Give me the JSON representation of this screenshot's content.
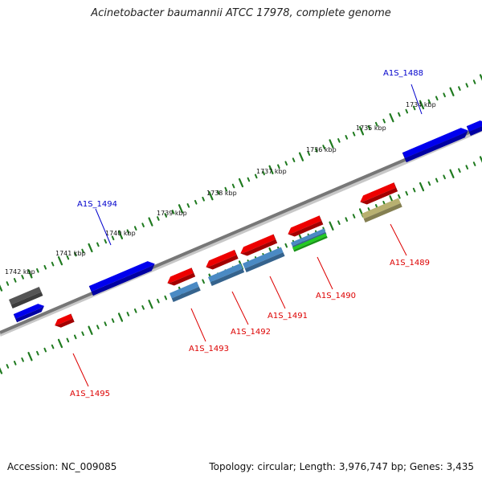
{
  "title": "Acinetobacter baumannii ATCC 17978, complete genome",
  "footer": {
    "accession": "Accession: NC_009085",
    "summary": "Topology: circular; Length: 3,976,747 bp; Genes: 3,435"
  },
  "colors": {
    "backbone": "#7a7a7a",
    "tick": "#1f7a1f",
    "ruler_text": "#111111",
    "forward_label": "#0000cc",
    "reverse_label": "#dd0000",
    "blue_gene": "#0000ee",
    "red_gene": "#ee0000",
    "steel_gene": "#4a8ac4",
    "green_gene": "#22cc22",
    "gray_gene": "#555555",
    "olive_gene": "#b8b070"
  },
  "ruler_labels": [
    "1734 kbp",
    "1735 kbp",
    "1736 kbp",
    "1737 kbp",
    "1738 kbp",
    "1739 kbp",
    "1740 kbp",
    "1741 kbp",
    "1742 kbp"
  ],
  "gene_labels": [
    "A1S_1488",
    "A1S_1489",
    "A1S_1490",
    "A1S_1491",
    "A1S_1492",
    "A1S_1493",
    "A1S_1494",
    "A1S_1495"
  ]
}
